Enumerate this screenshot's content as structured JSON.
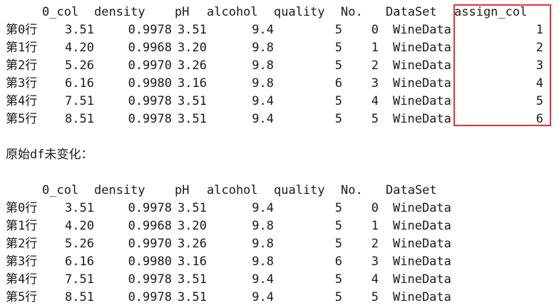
{
  "table1": {
    "headers": {
      "col0": "0_col",
      "density": "density",
      "ph": "pH",
      "alcohol": "alcohol",
      "quality": "quality",
      "no": "No.",
      "dataset": "DataSet",
      "assign": "assign_col"
    },
    "rows": [
      {
        "index": "第0行",
        "col0": "3.51",
        "density": "0.9978",
        "ph": "3.51",
        "alcohol": "9.4",
        "quality": "5",
        "no": "0",
        "dataset": "WineData",
        "assign": "1"
      },
      {
        "index": "第1行",
        "col0": "4.20",
        "density": "0.9968",
        "ph": "3.20",
        "alcohol": "9.8",
        "quality": "5",
        "no": "1",
        "dataset": "WineData",
        "assign": "2"
      },
      {
        "index": "第2行",
        "col0": "5.26",
        "density": "0.9970",
        "ph": "3.26",
        "alcohol": "9.8",
        "quality": "5",
        "no": "2",
        "dataset": "WineData",
        "assign": "3"
      },
      {
        "index": "第3行",
        "col0": "6.16",
        "density": "0.9980",
        "ph": "3.16",
        "alcohol": "9.8",
        "quality": "6",
        "no": "3",
        "dataset": "WineData",
        "assign": "4"
      },
      {
        "index": "第4行",
        "col0": "7.51",
        "density": "0.9978",
        "ph": "3.51",
        "alcohol": "9.4",
        "quality": "5",
        "no": "4",
        "dataset": "WineData",
        "assign": "5"
      },
      {
        "index": "第5行",
        "col0": "8.51",
        "density": "0.9978",
        "ph": "3.51",
        "alcohol": "9.4",
        "quality": "5",
        "no": "5",
        "dataset": "WineData",
        "assign": "6"
      }
    ]
  },
  "caption": "原始df未变化：",
  "table2": {
    "headers": {
      "col0": "0_col",
      "density": "density",
      "ph": "pH",
      "alcohol": "alcohol",
      "quality": "quality",
      "no": "No.",
      "dataset": "DataSet"
    },
    "rows": [
      {
        "index": "第0行",
        "col0": "3.51",
        "density": "0.9978",
        "ph": "3.51",
        "alcohol": "9.4",
        "quality": "5",
        "no": "0",
        "dataset": "WineData"
      },
      {
        "index": "第1行",
        "col0": "4.20",
        "density": "0.9968",
        "ph": "3.20",
        "alcohol": "9.8",
        "quality": "5",
        "no": "1",
        "dataset": "WineData"
      },
      {
        "index": "第2行",
        "col0": "5.26",
        "density": "0.9970",
        "ph": "3.26",
        "alcohol": "9.8",
        "quality": "5",
        "no": "2",
        "dataset": "WineData"
      },
      {
        "index": "第3行",
        "col0": "6.16",
        "density": "0.9980",
        "ph": "3.16",
        "alcohol": "9.8",
        "quality": "6",
        "no": "3",
        "dataset": "WineData"
      },
      {
        "index": "第4行",
        "col0": "7.51",
        "density": "0.9978",
        "ph": "3.51",
        "alcohol": "9.4",
        "quality": "5",
        "no": "4",
        "dataset": "WineData"
      },
      {
        "index": "第5行",
        "col0": "8.51",
        "density": "0.9978",
        "ph": "3.51",
        "alcohol": "9.4",
        "quality": "5",
        "no": "5",
        "dataset": "WineData"
      }
    ]
  },
  "highlight": {
    "color": "#e0323a"
  }
}
